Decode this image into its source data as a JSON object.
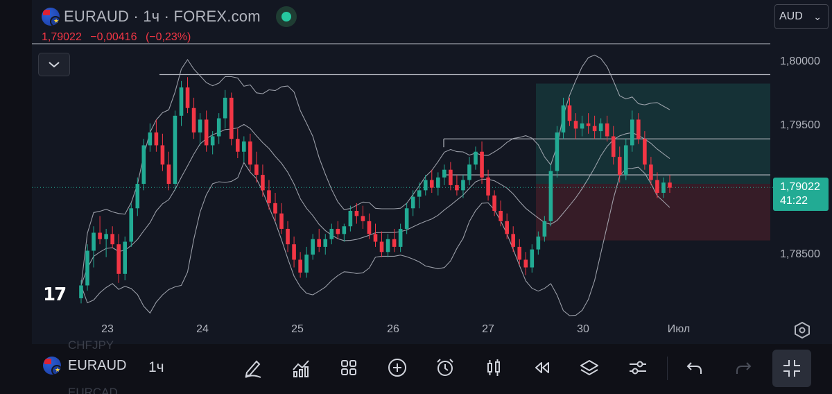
{
  "header": {
    "symbol_line": "EURAUD · 1ч · FOREX.com",
    "price": "1,79022",
    "change": "−0,00416",
    "change_pct": "(−0,23%)"
  },
  "currency_select": {
    "value": "AUD"
  },
  "price_axis": {
    "labels": [
      "1,80000",
      "1,79500",
      "1,78500"
    ]
  },
  "last_price_badge": {
    "price": "1,79022",
    "countdown": "41:22"
  },
  "time_axis": {
    "labels": [
      "23",
      "24",
      "25",
      "26",
      "27",
      "30",
      "Июл"
    ]
  },
  "logo": "17",
  "toolbar": {
    "symbol": "EURAUD",
    "interval": "1ч",
    "ghost_above": "CHFJPY",
    "ghost_below": "EURCAD",
    "icons": [
      "pencil-icon",
      "indicators-icon",
      "grid-icon",
      "plus-icon",
      "alarm-icon",
      "candles-icon",
      "replay-icon",
      "layers-icon",
      "settings-sliders-icon",
      "undo-icon",
      "redo-icon",
      "collapse-fullscreen-icon"
    ]
  },
  "colors": {
    "background": "#131722",
    "up": "#22ab94",
    "down": "#f23645",
    "line": "#b2b5be"
  },
  "chart_data": {
    "type": "candlestick",
    "y_range": [
      1.781,
      1.8015
    ],
    "horizontal_levels": [
      1.8014,
      1.799,
      1.794,
      1.7912,
      1.79022
    ],
    "position_tool": {
      "entry": 1.7905,
      "take_profit": 1.7983,
      "stop_loss": 1.7861
    },
    "candles": [
      [
        1.7816,
        1.783,
        1.7812,
        1.7826
      ],
      [
        1.7826,
        1.7858,
        1.7822,
        1.7853
      ],
      [
        1.7853,
        1.7872,
        1.784,
        1.7867
      ],
      [
        1.7867,
        1.788,
        1.7858,
        1.7862
      ],
      [
        1.7862,
        1.787,
        1.7848,
        1.7866
      ],
      [
        1.7866,
        1.7872,
        1.7855,
        1.7858
      ],
      [
        1.7858,
        1.7866,
        1.7828,
        1.7835
      ],
      [
        1.7835,
        1.7864,
        1.783,
        1.786
      ],
      [
        1.786,
        1.789,
        1.7856,
        1.7886
      ],
      [
        1.7886,
        1.791,
        1.788,
        1.7905
      ],
      [
        1.7905,
        1.794,
        1.79,
        1.7935
      ],
      [
        1.7935,
        1.7952,
        1.793,
        1.7945
      ],
      [
        1.7945,
        1.7955,
        1.793,
        1.7935
      ],
      [
        1.7935,
        1.7944,
        1.7915,
        1.792
      ],
      [
        1.792,
        1.793,
        1.79,
        1.7905
      ],
      [
        1.7905,
        1.7962,
        1.79,
        1.7958
      ],
      [
        1.7958,
        1.7985,
        1.795,
        1.798
      ],
      [
        1.798,
        1.7988,
        1.796,
        1.7964
      ],
      [
        1.7964,
        1.7972,
        1.794,
        1.7945
      ],
      [
        1.7945,
        1.796,
        1.7935,
        1.7955
      ],
      [
        1.7955,
        1.7962,
        1.793,
        1.7935
      ],
      [
        1.7935,
        1.7946,
        1.7928,
        1.7942
      ],
      [
        1.7942,
        1.796,
        1.7936,
        1.7956
      ],
      [
        1.7956,
        1.7978,
        1.7948,
        1.7972
      ],
      [
        1.7972,
        1.7976,
        1.7935,
        1.794
      ],
      [
        1.794,
        1.7948,
        1.7925,
        1.793
      ],
      [
        1.793,
        1.7942,
        1.7922,
        1.7938
      ],
      [
        1.7938,
        1.7944,
        1.7915,
        1.792
      ],
      [
        1.792,
        1.793,
        1.7906,
        1.7912
      ],
      [
        1.7912,
        1.792,
        1.7895,
        1.79
      ],
      [
        1.79,
        1.7908,
        1.7885,
        1.789
      ],
      [
        1.789,
        1.7898,
        1.7876,
        1.7882
      ],
      [
        1.7882,
        1.789,
        1.7866,
        1.787
      ],
      [
        1.787,
        1.7876,
        1.7852,
        1.7858
      ],
      [
        1.7858,
        1.7864,
        1.784,
        1.7846
      ],
      [
        1.7846,
        1.7852,
        1.7832,
        1.7836
      ],
      [
        1.7836,
        1.7856,
        1.7832,
        1.785
      ],
      [
        1.785,
        1.7866,
        1.7846,
        1.7862
      ],
      [
        1.7862,
        1.787,
        1.7852,
        1.7856
      ],
      [
        1.7856,
        1.7866,
        1.785,
        1.7862
      ],
      [
        1.7862,
        1.7874,
        1.7858,
        1.787
      ],
      [
        1.787,
        1.7876,
        1.7862,
        1.7866
      ],
      [
        1.7866,
        1.7874,
        1.786,
        1.7872
      ],
      [
        1.7872,
        1.7888,
        1.7868,
        1.7884
      ],
      [
        1.7884,
        1.789,
        1.7874,
        1.788
      ],
      [
        1.788,
        1.7888,
        1.787,
        1.7876
      ],
      [
        1.7876,
        1.7882,
        1.7862,
        1.7866
      ],
      [
        1.7866,
        1.7874,
        1.7856,
        1.786
      ],
      [
        1.786,
        1.7868,
        1.7848,
        1.7852
      ],
      [
        1.7852,
        1.7866,
        1.7848,
        1.7862
      ],
      [
        1.7862,
        1.787,
        1.7852,
        1.7856
      ],
      [
        1.7856,
        1.7874,
        1.7852,
        1.787
      ],
      [
        1.787,
        1.789,
        1.7866,
        1.7886
      ],
      [
        1.7886,
        1.79,
        1.788,
        1.7895
      ],
      [
        1.7895,
        1.7906,
        1.7886,
        1.79
      ],
      [
        1.79,
        1.7912,
        1.7896,
        1.7908
      ],
      [
        1.7908,
        1.7916,
        1.7898,
        1.7902
      ],
      [
        1.7902,
        1.7914,
        1.7896,
        1.791
      ],
      [
        1.791,
        1.792,
        1.7904,
        1.7916
      ],
      [
        1.7916,
        1.7922,
        1.79,
        1.7904
      ],
      [
        1.7904,
        1.7912,
        1.7896,
        1.79
      ],
      [
        1.79,
        1.7912,
        1.7894,
        1.7908
      ],
      [
        1.7908,
        1.7926,
        1.7904,
        1.792
      ],
      [
        1.792,
        1.7934,
        1.7916,
        1.793
      ],
      [
        1.793,
        1.7938,
        1.7905,
        1.791
      ],
      [
        1.791,
        1.7916,
        1.7892,
        1.7896
      ],
      [
        1.7896,
        1.79,
        1.788,
        1.7884
      ],
      [
        1.7884,
        1.7892,
        1.7872,
        1.7876
      ],
      [
        1.7876,
        1.7882,
        1.7862,
        1.7866
      ],
      [
        1.7866,
        1.7872,
        1.7852,
        1.7856
      ],
      [
        1.7856,
        1.7862,
        1.7842,
        1.7846
      ],
      [
        1.7846,
        1.7852,
        1.7834,
        1.784
      ],
      [
        1.784,
        1.7858,
        1.7836,
        1.7854
      ],
      [
        1.7854,
        1.7868,
        1.785,
        1.7864
      ],
      [
        1.7864,
        1.788,
        1.786,
        1.7876
      ],
      [
        1.7876,
        1.792,
        1.7872,
        1.7915
      ],
      [
        1.7915,
        1.795,
        1.791,
        1.7945
      ],
      [
        1.7945,
        1.7972,
        1.794,
        1.7966
      ],
      [
        1.7966,
        1.7972,
        1.795,
        1.7954
      ],
      [
        1.7954,
        1.796,
        1.794,
        1.7948
      ],
      [
        1.7948,
        1.7958,
        1.7942,
        1.7952
      ],
      [
        1.7952,
        1.796,
        1.7944,
        1.795
      ],
      [
        1.795,
        1.7958,
        1.794,
        1.7946
      ],
      [
        1.7946,
        1.7956,
        1.794,
        1.7952
      ],
      [
        1.7952,
        1.7958,
        1.7938,
        1.7942
      ],
      [
        1.7942,
        1.795,
        1.792,
        1.7926
      ],
      [
        1.7926,
        1.7934,
        1.7906,
        1.7912
      ],
      [
        1.7912,
        1.794,
        1.7908,
        1.7935
      ],
      [
        1.7935,
        1.7962,
        1.793,
        1.7955
      ],
      [
        1.7955,
        1.796,
        1.7936,
        1.794
      ],
      [
        1.794,
        1.7946,
        1.7916,
        1.792
      ],
      [
        1.792,
        1.7926,
        1.7904,
        1.7908
      ],
      [
        1.7908,
        1.7914,
        1.7894,
        1.7898
      ],
      [
        1.7898,
        1.791,
        1.7894,
        1.7906
      ],
      [
        1.7906,
        1.7912,
        1.7898,
        1.7902
      ]
    ]
  }
}
